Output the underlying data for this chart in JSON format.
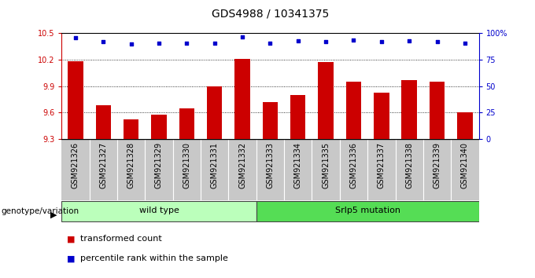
{
  "title": "GDS4988 / 10341375",
  "categories": [
    "GSM921326",
    "GSM921327",
    "GSM921328",
    "GSM921329",
    "GSM921330",
    "GSM921331",
    "GSM921332",
    "GSM921333",
    "GSM921334",
    "GSM921335",
    "GSM921336",
    "GSM921337",
    "GSM921338",
    "GSM921339",
    "GSM921340"
  ],
  "bar_values": [
    10.18,
    9.68,
    9.52,
    9.58,
    9.65,
    9.9,
    10.21,
    9.72,
    9.8,
    10.17,
    9.95,
    9.83,
    9.97,
    9.95,
    9.6
  ],
  "percentile_values": [
    96,
    92,
    90,
    91,
    91,
    91,
    97,
    91,
    93,
    92,
    94,
    92,
    93,
    92,
    91
  ],
  "bar_color": "#cc0000",
  "dot_color": "#0000cc",
  "ylim_left": [
    9.3,
    10.5
  ],
  "ylim_right": [
    0,
    100
  ],
  "yticks_left": [
    9.3,
    9.6,
    9.9,
    10.2,
    10.5
  ],
  "yticks_right": [
    0,
    25,
    50,
    75,
    100
  ],
  "ytick_labels_right": [
    "0",
    "25",
    "50",
    "75",
    "100%"
  ],
  "grid_ticks": [
    9.6,
    9.9,
    10.2
  ],
  "wt_count": 7,
  "group_labels": [
    "wild type",
    "Srlp5 mutation"
  ],
  "wt_color": "#bbffbb",
  "mut_color": "#55dd55",
  "xlabel": "genotype/variation",
  "legend_bar_label": "transformed count",
  "legend_dot_label": "percentile rank within the sample",
  "xtick_bg_color": "#c8c8c8",
  "title_fontsize": 10,
  "axis_fontsize": 7,
  "group_fontsize": 8,
  "legend_fontsize": 8
}
